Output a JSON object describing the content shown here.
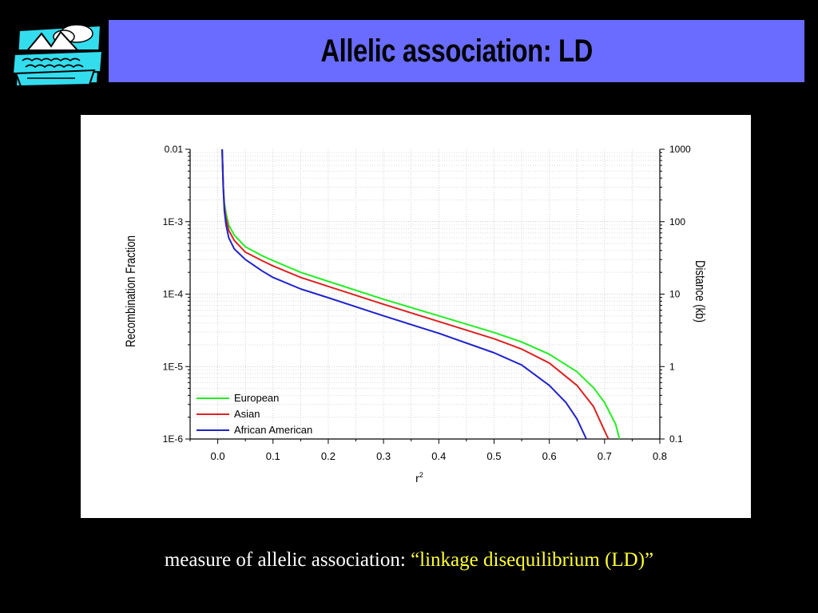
{
  "slide": {
    "title": "Allelic association: LD",
    "caption_prefix": "measure of allelic association: ",
    "caption_highlight": "“linkage disequilibrium (LD)”",
    "colors": {
      "title_bar": "#6a6cff",
      "caption_highlight": "#ffff33",
      "background": "#000000"
    },
    "clipart_icon": "mountain-lake-clipart-icon"
  },
  "chart_data": {
    "type": "line",
    "xlabel": "r",
    "xlabel_superscript": "2",
    "ylabel": "Recombination Fraction",
    "y2label": "Distance (kb)",
    "xlim": [
      -0.05,
      0.8
    ],
    "ylim": [
      1e-06,
      0.01
    ],
    "yscale": "log",
    "x_ticks": [
      "0.0",
      "0.1",
      "0.2",
      "0.3",
      "0.4",
      "0.5",
      "0.6",
      "0.7",
      "0.8"
    ],
    "y_ticks": [
      "0.01",
      "1E-3",
      "1E-4",
      "1E-5",
      "1E-6"
    ],
    "y2_ticks": [
      "1000",
      "100",
      "10",
      "1",
      "0.1"
    ],
    "grid": true,
    "legend_position": "bottom-left",
    "series": [
      {
        "name": "European",
        "color": "#22ee22",
        "x": [
          0.008,
          0.01,
          0.012,
          0.015,
          0.02,
          0.03,
          0.05,
          0.08,
          0.1,
          0.15,
          0.2,
          0.3,
          0.4,
          0.5,
          0.55,
          0.6,
          0.65,
          0.68,
          0.7,
          0.72,
          0.727
        ],
        "y": [
          0.01,
          0.003,
          0.0018,
          0.0013,
          0.0009,
          0.00065,
          0.00045,
          0.00034,
          0.00029,
          0.0002,
          0.00015,
          8.51e-05,
          5.01e-05,
          2.95e-05,
          2.19e-05,
          1.48e-05,
          8.5e-06,
          5.1e-06,
          3.2e-06,
          1.6e-06,
          1e-06
        ]
      },
      {
        "name": "Asian",
        "color": "#dd2222",
        "x": [
          0.008,
          0.01,
          0.012,
          0.015,
          0.02,
          0.03,
          0.05,
          0.08,
          0.1,
          0.15,
          0.2,
          0.3,
          0.4,
          0.5,
          0.55,
          0.6,
          0.65,
          0.68,
          0.7,
          0.707
        ],
        "y": [
          0.01,
          0.003,
          0.0016,
          0.0011,
          0.00076,
          0.00055,
          0.00038,
          0.00029,
          0.000245,
          0.00017,
          0.000128,
          7.24e-05,
          4.19e-05,
          2.42e-05,
          1.74e-05,
          1.12e-05,
          5.5e-06,
          2.8e-06,
          1.3e-06,
          1e-06
        ]
      },
      {
        "name": "African American",
        "color": "#1f22cc",
        "x": [
          0.008,
          0.01,
          0.012,
          0.015,
          0.02,
          0.03,
          0.05,
          0.08,
          0.1,
          0.15,
          0.2,
          0.3,
          0.4,
          0.5,
          0.55,
          0.6,
          0.63,
          0.65,
          0.667
        ],
        "y": [
          0.01,
          0.003,
          0.0014,
          0.0009,
          0.0006,
          0.00042,
          0.0003,
          0.00021,
          0.00017,
          0.000118,
          8.91e-05,
          5.01e-05,
          2.88e-05,
          1.55e-05,
          1.05e-05,
          5.5e-06,
          3.2e-06,
          1.9e-06,
          1e-06
        ]
      }
    ]
  }
}
